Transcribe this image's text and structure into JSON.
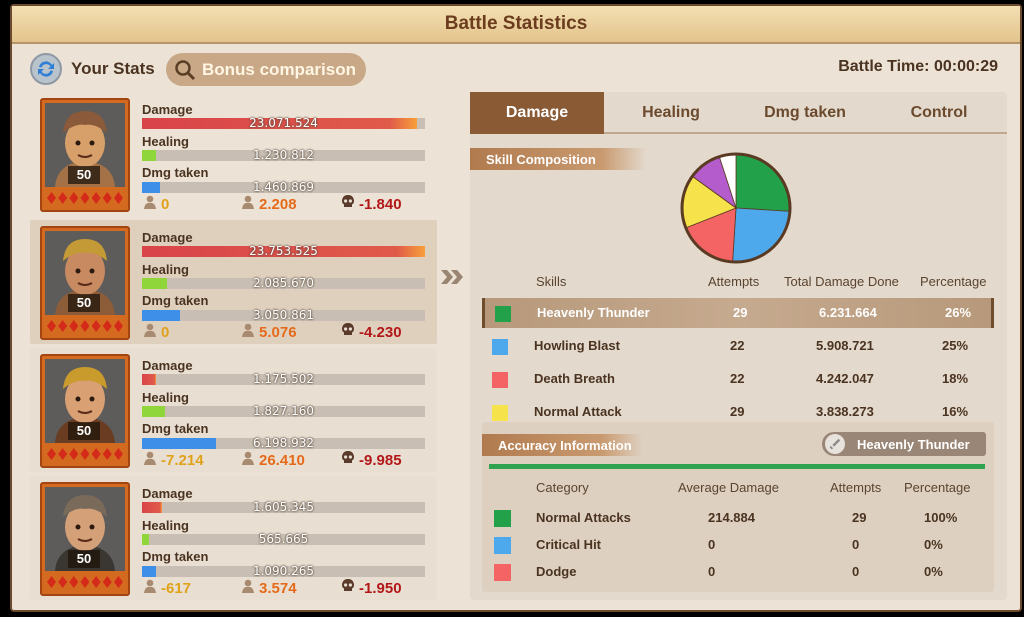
{
  "title": "Battle Statistics",
  "your_stats": "Your Stats",
  "bonus_comparison": "Bonus comparison",
  "battle_time": "Battle Time: 00:00:29",
  "labels": {
    "damage": "Damage",
    "healing": "Healing",
    "dmg_taken": "Dmg taken"
  },
  "heroes": [
    {
      "level": "50",
      "damage": "23.071.524",
      "damage_ratio": 0.97,
      "healing": "1.230.812",
      "healing_ratio": 0.05,
      "dmg_taken": "1.460.869",
      "dmg_taken_ratio": 0.065,
      "stat_a": "0",
      "stat_b": "2.208",
      "stat_c": "-1.840"
    },
    {
      "level": "50",
      "damage": "23.753.525",
      "damage_ratio": 1.0,
      "healing": "2.085.670",
      "healing_ratio": 0.09,
      "dmg_taken": "3.050.861",
      "dmg_taken_ratio": 0.135,
      "stat_a": "0",
      "stat_b": "5.076",
      "stat_c": "-4.230"
    },
    {
      "level": "50",
      "damage": "1.175.502",
      "damage_ratio": 0.05,
      "healing": "1.827.160",
      "healing_ratio": 0.08,
      "dmg_taken": "6.198.932",
      "dmg_taken_ratio": 0.26,
      "stat_a": "-7.214",
      "stat_b": "26.410",
      "stat_c": "-9.985"
    },
    {
      "level": "50",
      "damage": "1.605.345",
      "damage_ratio": 0.07,
      "healing": "565.665",
      "healing_ratio": 0.025,
      "dmg_taken": "1.090.265",
      "dmg_taken_ratio": 0.05,
      "stat_a": "-617",
      "stat_b": "3.574",
      "stat_c": "-1.950"
    }
  ],
  "tabs": [
    "Damage",
    "Healing",
    "Dmg taken",
    "Control"
  ],
  "skill_composition": "Skill Composition",
  "skills_table": {
    "headers": [
      "Skills",
      "Attempts",
      "Total Damage Done",
      "Percentage"
    ],
    "rows": [
      {
        "name": "Heavenly Thunder",
        "attempts": "29",
        "total": "6.231.664",
        "pct": "26%",
        "color": "#22a04a"
      },
      {
        "name": "Howling Blast",
        "attempts": "22",
        "total": "5.908.721",
        "pct": "25%",
        "color": "#4ea8ec"
      },
      {
        "name": "Death Breath",
        "attempts": "22",
        "total": "4.242.047",
        "pct": "18%",
        "color": "#f46464"
      },
      {
        "name": "Normal Attack",
        "attempts": "29",
        "total": "3.838.273",
        "pct": "16%",
        "color": "#f6e24a"
      }
    ]
  },
  "pie": {
    "slices": [
      {
        "value": 26,
        "color": "#22a04a"
      },
      {
        "value": 25,
        "color": "#4ea8ec"
      },
      {
        "value": 18,
        "color": "#f46464"
      },
      {
        "value": 16,
        "color": "#f6e24a"
      },
      {
        "value": 10,
        "color": "#b45ccc"
      },
      {
        "value": 5,
        "color": "#ffffff"
      }
    ]
  },
  "accuracy": {
    "title": "Accuracy Information",
    "skill": "Heavenly Thunder",
    "headers": [
      "Category",
      "Average Damage",
      "Attempts",
      "Percentage"
    ],
    "rows": [
      {
        "name": "Normal Attacks",
        "avg": "214.884",
        "attempts": "29",
        "pct": "100%",
        "color": "#22a04a"
      },
      {
        "name": "Critical Hit",
        "avg": "0",
        "attempts": "0",
        "pct": "0%",
        "color": "#4ea8ec"
      },
      {
        "name": "Dodge",
        "avg": "0",
        "attempts": "0",
        "pct": "0%",
        "color": "#f46464"
      }
    ]
  }
}
